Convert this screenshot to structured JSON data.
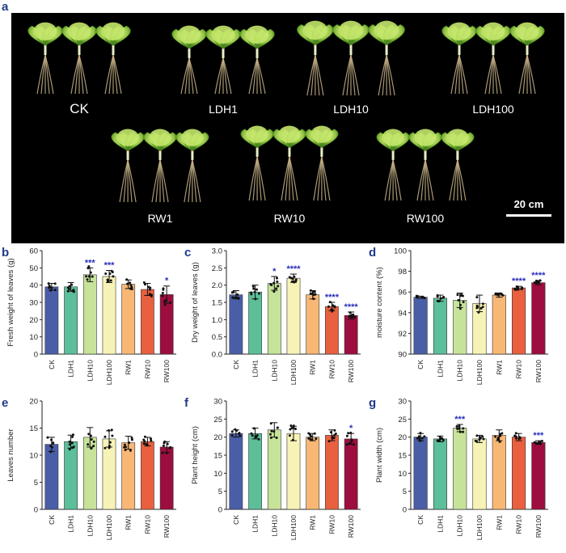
{
  "figure": {
    "panel_letters": [
      "a",
      "b",
      "c",
      "d",
      "e",
      "f",
      "g"
    ],
    "photo": {
      "group_labels": [
        "CK",
        "LDH1",
        "LDH10",
        "LDH100",
        "RW1",
        "RW10",
        "RW100"
      ],
      "scale_bar": "20 cm"
    }
  },
  "colors": [
    "#4a5ea8",
    "#5cbf9a",
    "#c7e39a",
    "#f7f3b6",
    "#f8b775",
    "#e8603f",
    "#9e0d3f"
  ],
  "chart_data": [
    {
      "id": "b",
      "type": "bar",
      "categories": [
        "CK",
        "LDH1",
        "LDH10",
        "LDH100",
        "RW1",
        "RW10",
        "RW100"
      ],
      "values": [
        39,
        39,
        46,
        45,
        40.5,
        37.5,
        34.5
      ],
      "errors": [
        2,
        2.5,
        4,
        3.5,
        2.5,
        3.5,
        5
      ],
      "significance": [
        "",
        "",
        "***",
        "***",
        "",
        "",
        "*"
      ],
      "ylabel": "Fresh weight of leaves (g)",
      "ylim": [
        0,
        60
      ],
      "yticks": [
        "0",
        "10",
        "20",
        "30",
        "40",
        "50",
        "60"
      ]
    },
    {
      "id": "c",
      "type": "bar",
      "categories": [
        "CK",
        "LDH1",
        "LDH10",
        "LDH100",
        "RW1",
        "RW10",
        "RW100"
      ],
      "values": [
        1.72,
        1.8,
        2.05,
        2.2,
        1.72,
        1.38,
        1.12
      ],
      "errors": [
        0.12,
        0.2,
        0.2,
        0.12,
        0.12,
        0.12,
        0.1
      ],
      "significance": [
        "",
        "",
        "*",
        "****",
        "",
        "****",
        "****"
      ],
      "ylabel": "Dry weight of leaves (g)",
      "ylim": [
        0,
        3.0
      ],
      "yticks": [
        "0.0",
        "0.5",
        "1.0",
        "1.5",
        "2.0",
        "2.5",
        "3.0"
      ]
    },
    {
      "id": "d",
      "type": "bar",
      "categories": [
        "CK",
        "LDH1",
        "LDH10",
        "LDH100",
        "RW1",
        "RW10",
        "RW100"
      ],
      "values": [
        95.5,
        95.4,
        95.2,
        94.9,
        95.7,
        96.4,
        96.9
      ],
      "errors": [
        0.1,
        0.3,
        0.7,
        0.8,
        0.2,
        0.15,
        0.2
      ],
      "significance": [
        "",
        "",
        "",
        "",
        "",
        "****",
        "****"
      ],
      "ylabel": "moisture content (%)",
      "ylim": [
        90,
        100
      ],
      "yticks": [
        "90",
        "92",
        "94",
        "96",
        "98",
        "100"
      ]
    },
    {
      "id": "e",
      "type": "bar",
      "categories": [
        "CK",
        "LDH1",
        "LDH10",
        "LDH100",
        "RW1",
        "RW10",
        "RW100"
      ],
      "values": [
        12,
        12.5,
        13.3,
        13,
        12.3,
        12.5,
        11.5
      ],
      "errors": [
        1.3,
        1.2,
        1.8,
        1.5,
        1.2,
        0.8,
        1
      ],
      "significance": [
        "",
        "",
        "",
        "",
        "",
        "",
        ""
      ],
      "ylabel": "Leaves number",
      "ylim": [
        0,
        20
      ],
      "yticks": [
        "0",
        "5",
        "10",
        "15",
        "20"
      ]
    },
    {
      "id": "f",
      "type": "bar",
      "categories": [
        "CK",
        "LDH1",
        "LDH10",
        "LDH100",
        "RW1",
        "RW10",
        "RW100"
      ],
      "values": [
        21,
        21,
        22,
        21,
        20,
        20.5,
        19.5
      ],
      "errors": [
        1,
        1.5,
        2,
        2,
        1,
        1.5,
        1.5
      ],
      "significance": [
        "",
        "",
        "",
        "",
        "",
        "",
        "*"
      ],
      "ylabel": "Plant height (cm)",
      "ylim": [
        0,
        30
      ],
      "yticks": [
        "0",
        "5",
        "10",
        "15",
        "20",
        "25",
        "30"
      ]
    },
    {
      "id": "g",
      "type": "bar",
      "categories": [
        "CK",
        "LDH1",
        "LDH10",
        "LDH100",
        "RW1",
        "RW10",
        "RW100"
      ],
      "values": [
        20,
        19.5,
        22.5,
        19.5,
        20.5,
        20,
        18.5
      ],
      "errors": [
        1,
        0.8,
        1,
        1,
        1.5,
        1,
        0.5
      ],
      "significance": [
        "",
        "",
        "***",
        "",
        "",
        "",
        "***"
      ],
      "ylabel": "Plant width (cm)",
      "ylim": [
        0,
        30
      ],
      "yticks": [
        "0",
        "5",
        "10",
        "15",
        "20",
        "25",
        "30"
      ]
    }
  ]
}
